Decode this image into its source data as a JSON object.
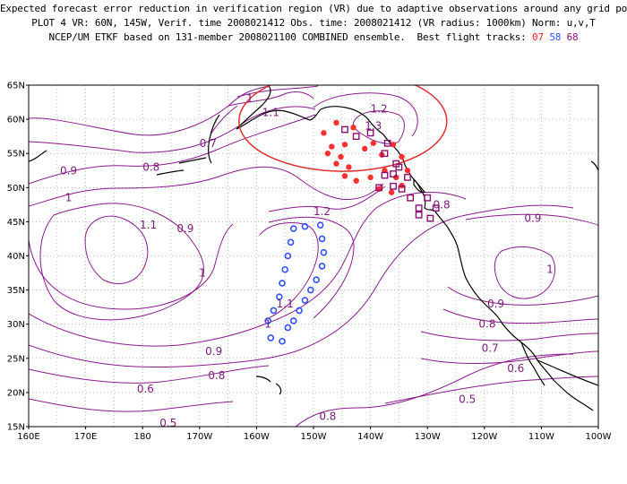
{
  "title": {
    "line1": "Expected forecast error reduction in verification region (VR) due to adaptive observations around any grid point.",
    "line2": "PLOT 4 VR: 60N, 145W, Verif. time 2008021412 Obs. time: 2008021412 (VR radius: 1000km) Norm: u,v,T",
    "line3_prefix": "NCEP/UM ETKF based on 131-member 2008021100 COMBINED ensemble.  Best flight tracks:",
    "tracks": [
      "07",
      "58",
      "68"
    ]
  },
  "axes": {
    "lat_labels": [
      "65N",
      "60N",
      "55N",
      "50N",
      "45N",
      "40N",
      "35N",
      "30N",
      "25N",
      "20N",
      "15N"
    ],
    "lon_labels": [
      "160E",
      "170E",
      "180",
      "170W",
      "160W",
      "150W",
      "140W",
      "130W",
      "120W",
      "110W",
      "100W"
    ]
  },
  "contour_labels": [
    {
      "text": "1",
      "lon": -161.2,
      "lat": 63.0
    },
    {
      "text": "1.1",
      "lon": -157.5,
      "lat": 61.0
    },
    {
      "text": "1.2",
      "lon": -138.5,
      "lat": 61.5
    },
    {
      "text": "1.3",
      "lon": -139.5,
      "lat": 59.0
    },
    {
      "text": "0.7",
      "lon": -168.5,
      "lat": 56.5
    },
    {
      "text": "0.9",
      "lon": 167.0,
      "lat": 52.5
    },
    {
      "text": "0.8",
      "lon": -178.5,
      "lat": 53.0
    },
    {
      "text": "1",
      "lon": 167.0,
      "lat": 48.5
    },
    {
      "text": "1.2",
      "lon": -148.5,
      "lat": 46.5
    },
    {
      "text": "0.8",
      "lon": -127.5,
      "lat": 47.5
    },
    {
      "text": "0.9",
      "lon": -111.5,
      "lat": 45.5
    },
    {
      "text": "1.1",
      "lon": -179.0,
      "lat": 44.5
    },
    {
      "text": "0.9",
      "lon": -172.5,
      "lat": 44.0
    },
    {
      "text": "1",
      "lon": -169.5,
      "lat": 37.5
    },
    {
      "text": "1",
      "lon": -108.5,
      "lat": 38.0
    },
    {
      "text": "1.1",
      "lon": -155.0,
      "lat": 33.0
    },
    {
      "text": "1",
      "lon": -158.0,
      "lat": 30.0
    },
    {
      "text": "0.9",
      "lon": -118.0,
      "lat": 33.0
    },
    {
      "text": "0.8",
      "lon": -119.5,
      "lat": 30.0
    },
    {
      "text": "0.9",
      "lon": -167.5,
      "lat": 26.0
    },
    {
      "text": "0.7",
      "lon": -119.0,
      "lat": 26.5
    },
    {
      "text": "0.8",
      "lon": -167.0,
      "lat": 22.5
    },
    {
      "text": "0.6",
      "lon": -114.5,
      "lat": 23.5
    },
    {
      "text": "0.6",
      "lon": -179.5,
      "lat": 20.5
    },
    {
      "text": "0.5",
      "lon": -123.0,
      "lat": 19.0
    },
    {
      "text": "0.8",
      "lon": -147.5,
      "lat": 16.5
    },
    {
      "text": "0.5",
      "lon": -175.5,
      "lat": 15.5
    }
  ],
  "tracks": {
    "t07": {
      "color": "#ff3030",
      "marker": "dot",
      "points": [
        [
          -148.2,
          58.0
        ],
        [
          -146.0,
          59.5
        ],
        [
          -143.0,
          58.8
        ],
        [
          -146.8,
          56.0
        ],
        [
          -144.5,
          56.3
        ],
        [
          -147.5,
          55.0
        ],
        [
          -145.2,
          54.5
        ],
        [
          -146.0,
          53.5
        ],
        [
          -143.8,
          53.0
        ],
        [
          -144.5,
          51.7
        ],
        [
          -142.5,
          51.0
        ],
        [
          -140.0,
          51.5
        ],
        [
          -141.0,
          55.7
        ],
        [
          -139.5,
          56.5
        ],
        [
          -138.0,
          54.8
        ],
        [
          -136.0,
          56.3
        ],
        [
          -134.5,
          54.5
        ],
        [
          -137.5,
          52.5
        ],
        [
          -135.5,
          51.5
        ],
        [
          -133.5,
          52.5
        ],
        [
          -138.5,
          49.8
        ],
        [
          -136.3,
          49.3
        ],
        [
          -134.5,
          50.3
        ]
      ]
    },
    "t58": {
      "color": "#3050ff",
      "marker": "circle",
      "points": [
        [
          -148.8,
          44.5
        ],
        [
          -148.5,
          42.5
        ],
        [
          -148.2,
          40.5
        ],
        [
          -148.5,
          38.5
        ],
        [
          -149.5,
          36.5
        ],
        [
          -150.5,
          35.0
        ],
        [
          -151.5,
          33.5
        ],
        [
          -152.5,
          32.0
        ],
        [
          -153.5,
          30.5
        ],
        [
          -154.5,
          29.5
        ],
        [
          -155.5,
          27.5
        ],
        [
          -157.5,
          28.0
        ],
        [
          -158.0,
          30.5
        ],
        [
          -157.0,
          32.0
        ],
        [
          -156.0,
          34.0
        ],
        [
          -155.5,
          36.0
        ],
        [
          -155.0,
          38.0
        ],
        [
          -154.5,
          40.0
        ],
        [
          -154.0,
          42.0
        ],
        [
          -153.5,
          44.0
        ],
        [
          -151.5,
          44.3
        ]
      ]
    },
    "t68": {
      "color": "#8a1070",
      "marker": "square",
      "points": [
        [
          -144.5,
          58.5
        ],
        [
          -142.5,
          57.5
        ],
        [
          -140.0,
          58.0
        ],
        [
          -137.0,
          56.5
        ],
        [
          -137.5,
          55.0
        ],
        [
          -135.5,
          53.5
        ],
        [
          -136.0,
          52.0
        ],
        [
          -133.5,
          51.5
        ],
        [
          -134.5,
          49.8
        ],
        [
          -136.0,
          50.2
        ],
        [
          -133.0,
          48.5
        ],
        [
          -131.5,
          47.0
        ],
        [
          -130.0,
          48.5
        ],
        [
          -128.5,
          47.0
        ],
        [
          -129.5,
          45.5
        ],
        [
          -131.5,
          46.0
        ],
        [
          -138.5,
          50.0
        ],
        [
          -137.5,
          51.8
        ],
        [
          -135.0,
          53.0
        ]
      ]
    }
  },
  "vr_circle": {
    "center_lon": -145,
    "center_lat": 60,
    "color": "#e03030"
  }
}
